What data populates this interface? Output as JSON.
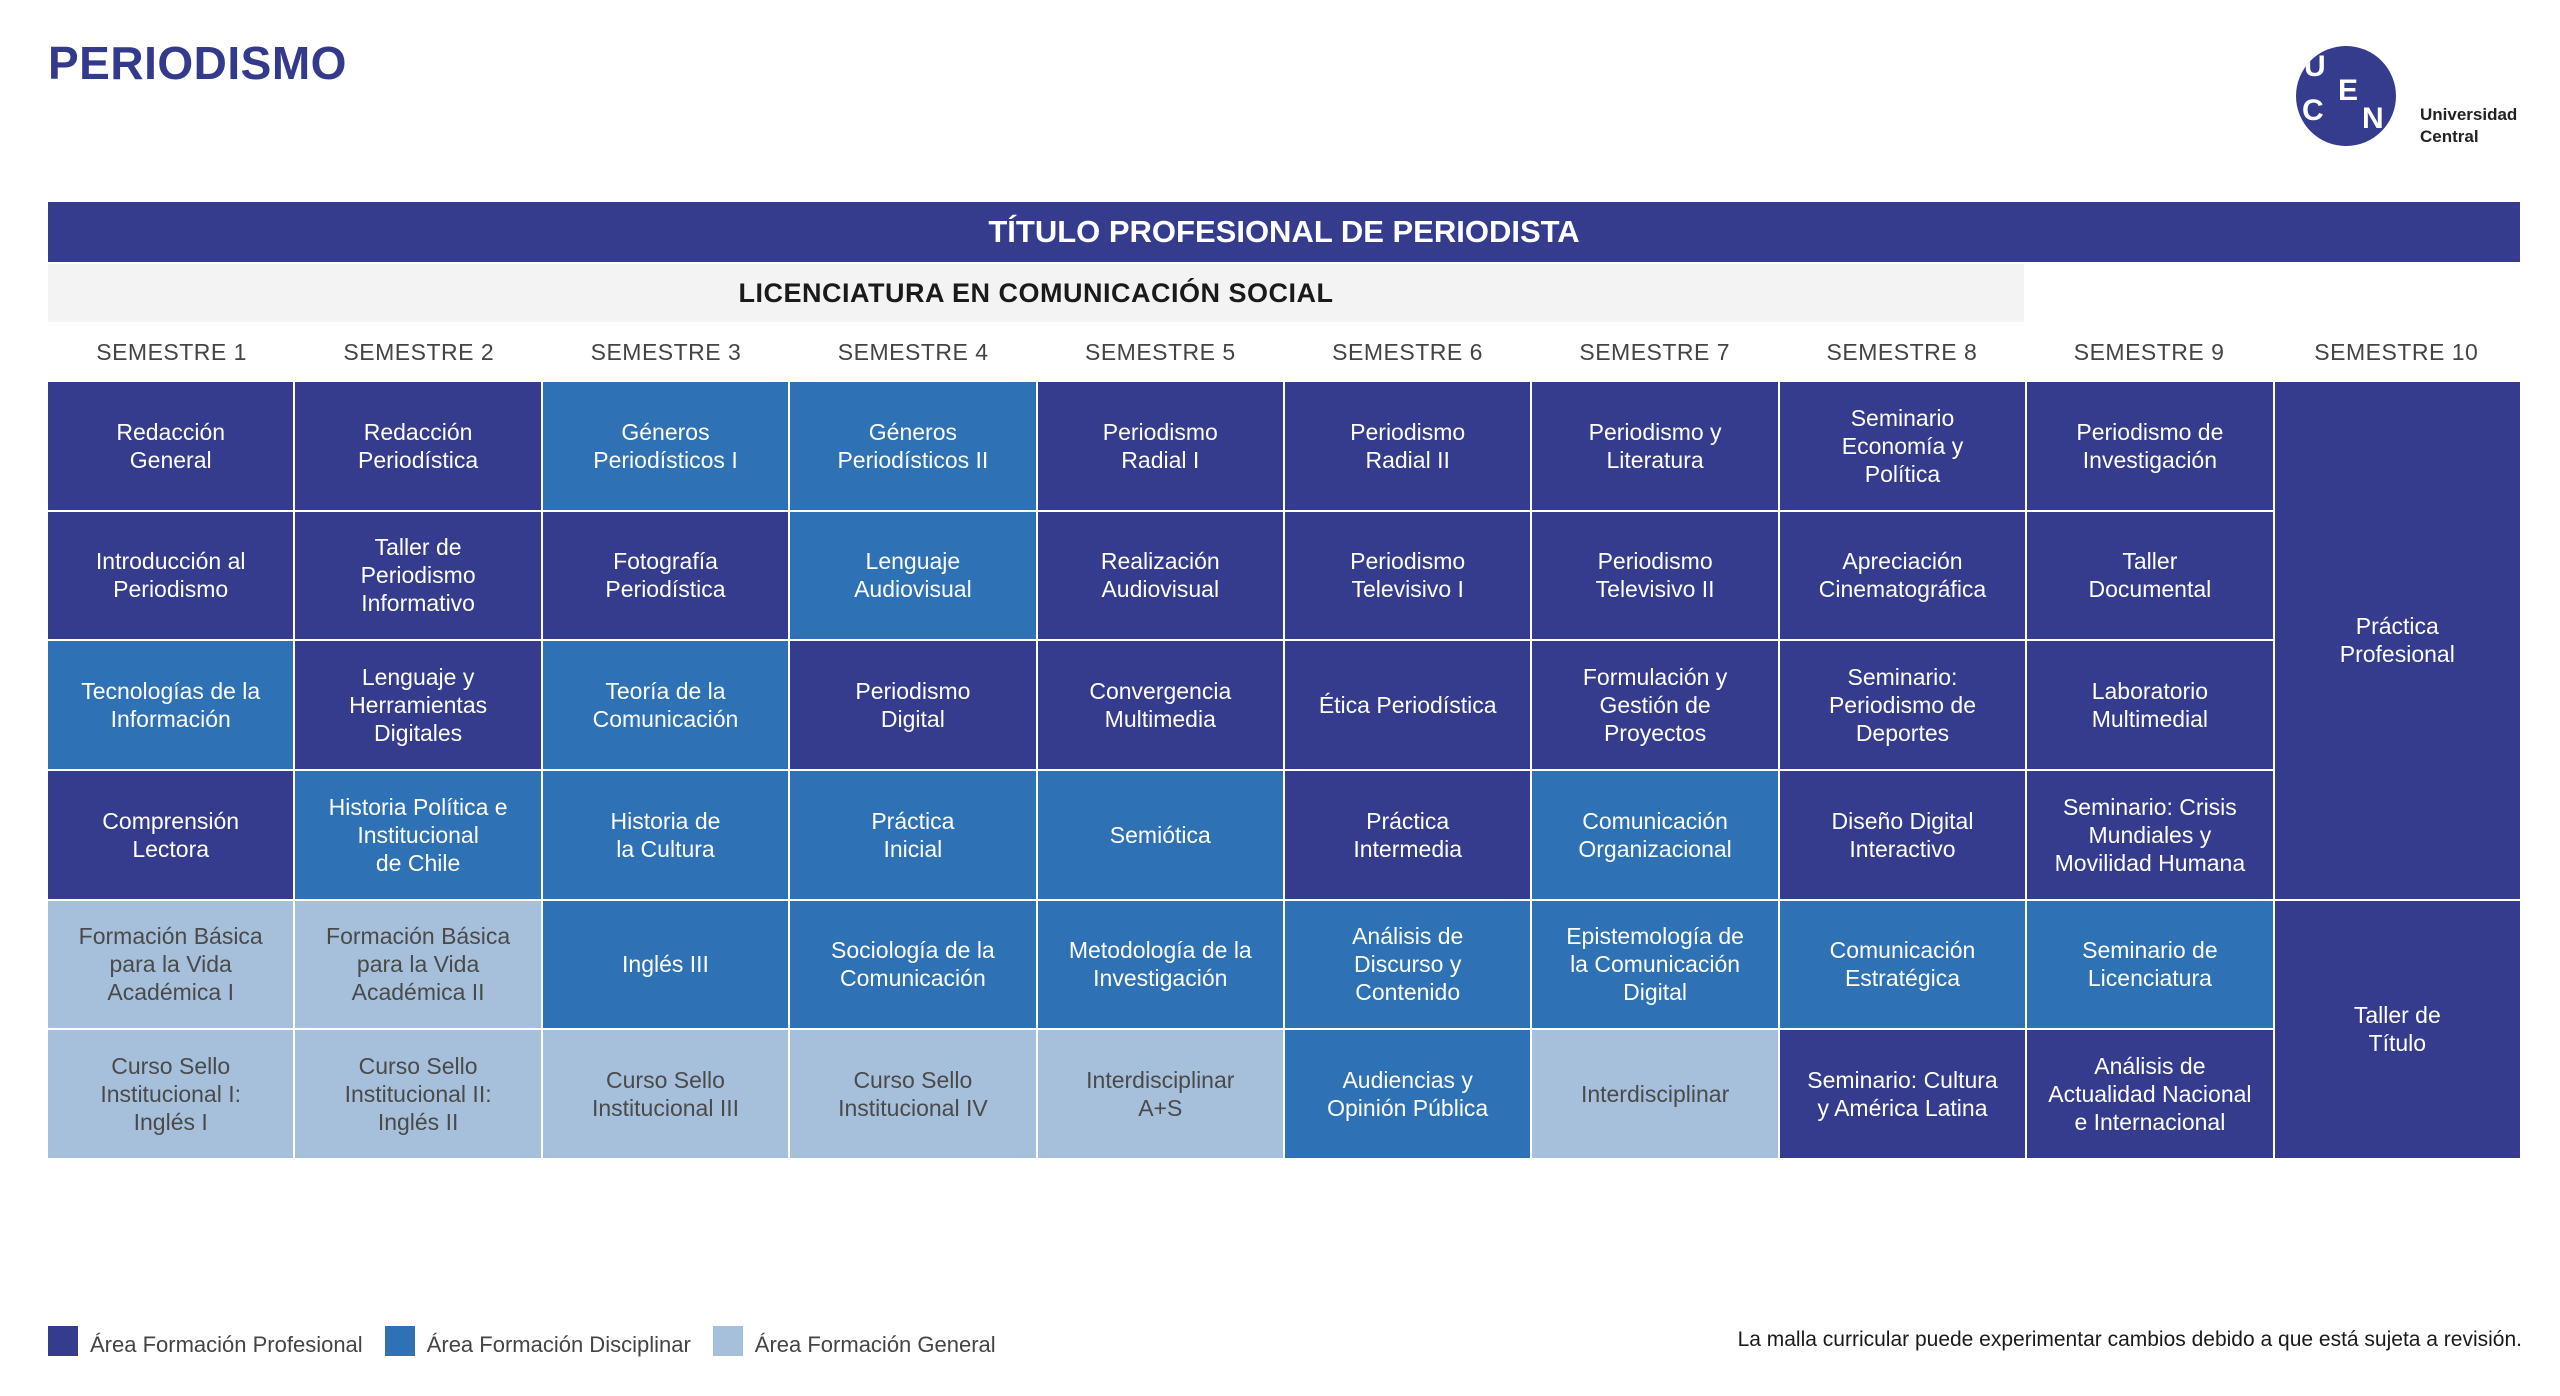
{
  "title": "PERIODISMO",
  "logo": {
    "letters": [
      "U",
      "C",
      "E",
      "N"
    ],
    "line1": "Universidad",
    "line2": "Central"
  },
  "header": "TÍTULO PROFESIONAL DE PERIODISTA",
  "subheader": "LICENCIATURA EN COMUNICACIÓN SOCIAL",
  "semesters": [
    "SEMESTRE 1",
    "SEMESTRE 2",
    "SEMESTRE 3",
    "SEMESTRE 4",
    "SEMESTRE 5",
    "SEMESTRE 6",
    "SEMESTRE 7",
    "SEMESTRE 8",
    "SEMESTRE 9",
    "SEMESTRE 10"
  ],
  "colors": {
    "profesional": "#353c8e",
    "disciplinar": "#2e72b5",
    "general": "#a6bfdb"
  },
  "courses": [
    {
      "label": "Redacción\nGeneral",
      "area": "prof"
    },
    {
      "label": "Redacción\nPeriodística",
      "area": "prof"
    },
    {
      "label": "Géneros\nPeriodísticos I",
      "area": "disc"
    },
    {
      "label": "Géneros\nPeriodísticos II",
      "area": "disc"
    },
    {
      "label": "Periodismo\nRadial I",
      "area": "prof"
    },
    {
      "label": "Periodismo\nRadial II",
      "area": "prof"
    },
    {
      "label": "Periodismo y\nLiteratura",
      "area": "prof"
    },
    {
      "label": "Seminario\nEconomía y\nPolítica",
      "area": "prof"
    },
    {
      "label": "Periodismo de\nInvestigación",
      "area": "prof"
    },
    {
      "label": "Práctica\nProfesional",
      "area": "prof"
    },
    {
      "label": "Introducción al\nPeriodismo",
      "area": "prof"
    },
    {
      "label": "Taller de\nPeriodismo\nInformativo",
      "area": "prof"
    },
    {
      "label": "Fotografía\nPeriodística",
      "area": "prof"
    },
    {
      "label": "Lenguaje\nAudiovisual",
      "area": "disc"
    },
    {
      "label": "Realización\nAudiovisual",
      "area": "prof"
    },
    {
      "label": "Periodismo\nTelevisivo I",
      "area": "prof"
    },
    {
      "label": "Periodismo\nTelevisivo II",
      "area": "prof"
    },
    {
      "label": "Apreciación\nCinematográfica",
      "area": "prof"
    },
    {
      "label": "Taller\nDocumental",
      "area": "prof"
    },
    {
      "label": "Tecnologías de la\nInformación",
      "area": "disc"
    },
    {
      "label": "Lenguaje y\nHerramientas\nDigitales",
      "area": "prof"
    },
    {
      "label": "Teoría de la\nComunicación",
      "area": "disc"
    },
    {
      "label": "Periodismo\nDigital",
      "area": "prof"
    },
    {
      "label": "Convergencia\nMultimedia",
      "area": "prof"
    },
    {
      "label": "Ética Periodística",
      "area": "prof"
    },
    {
      "label": "Formulación y\nGestión de\nProyectos",
      "area": "prof"
    },
    {
      "label": "Seminario:\nPeriodismo de\nDeportes",
      "area": "prof"
    },
    {
      "label": "Laboratorio\nMultimedial",
      "area": "prof"
    },
    {
      "label": "Comprensión\nLectora",
      "area": "prof"
    },
    {
      "label": "Historia Política e\nInstitucional\nde Chile",
      "area": "disc"
    },
    {
      "label": "Historia de\nla Cultura",
      "area": "disc"
    },
    {
      "label": "Práctica\nInicial",
      "area": "disc"
    },
    {
      "label": "Semiótica",
      "area": "disc"
    },
    {
      "label": "Práctica\nIntermedia",
      "area": "prof"
    },
    {
      "label": "Comunicación\nOrganizacional",
      "area": "disc"
    },
    {
      "label": "Diseño Digital\nInteractivo",
      "area": "prof"
    },
    {
      "label": "Seminario: Crisis\nMundiales y\nMovilidad Humana",
      "area": "prof"
    },
    {
      "label": "Formación Básica\npara la Vida\nAcadémica I",
      "area": "gen"
    },
    {
      "label": "Formación Básica\npara la Vida\nAcadémica II",
      "area": "gen"
    },
    {
      "label": "Inglés III",
      "area": "disc"
    },
    {
      "label": "Sociología de la\nComunicación",
      "area": "disc"
    },
    {
      "label": "Metodología de la\nInvestigación",
      "area": "disc"
    },
    {
      "label": "Análisis de\nDiscurso y\nContenido",
      "area": "disc"
    },
    {
      "label": "Epistemología de\nla Comunicación\nDigital",
      "area": "disc"
    },
    {
      "label": "Comunicación\nEstratégica",
      "area": "disc"
    },
    {
      "label": "Seminario de\nLicenciatura",
      "area": "disc"
    },
    {
      "label": "Taller de\nTítulo",
      "area": "prof"
    },
    {
      "label": "Curso Sello\nInstitucional I:\nInglés I",
      "area": "gen"
    },
    {
      "label": "Curso Sello\nInstitucional II:\nInglés II",
      "area": "gen"
    },
    {
      "label": "Curso Sello\nInstitucional III",
      "area": "gen"
    },
    {
      "label": "Curso Sello\nInstitucional IV",
      "area": "gen"
    },
    {
      "label": "Interdisciplinar\nA+S",
      "area": "gen"
    },
    {
      "label": "Audiencias y\nOpinión Pública",
      "area": "disc"
    },
    {
      "label": "Interdisciplinar",
      "area": "gen"
    },
    {
      "label": "Seminario: Cultura\ny América Latina",
      "area": "prof"
    },
    {
      "label": "Análisis de\nActualidad Nacional\ne Internacional",
      "area": "prof"
    }
  ],
  "legend": [
    {
      "label": "Área Formación Profesional",
      "area": "prof"
    },
    {
      "label": "Área Formación Disciplinar",
      "area": "disc"
    },
    {
      "label": "Área Formación General",
      "area": "gen"
    }
  ],
  "disclaimer": "La malla curricular puede experimentar cambios debido a que está sujeta a revisión."
}
